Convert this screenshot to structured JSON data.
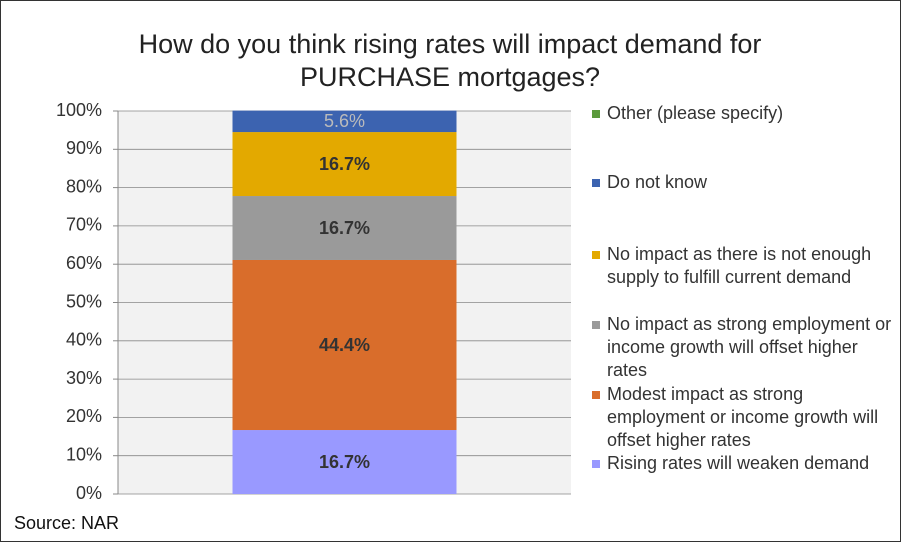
{
  "chart_data": {
    "type": "stacked-bar",
    "title": "How do you think rising rates will impact demand for PURCHASE mortgages?",
    "categories": [
      null
    ],
    "series": [
      {
        "name": "Rising rates will weaken demand",
        "color": "#9999ff",
        "values": [
          16.7
        ],
        "value_labels": [
          "16.7%"
        ]
      },
      {
        "name": "Modest impact as strong employment or income growth will offset higher rates",
        "color": "#d96d2b",
        "values": [
          44.4
        ],
        "value_labels": [
          "44.4%"
        ]
      },
      {
        "name": "No impact as strong employment or income growth will offset higher rates",
        "color": "#9a9a9a",
        "values": [
          16.7
        ],
        "value_labels": [
          "16.7%"
        ]
      },
      {
        "name": "No impact as there is not enough supply to fulfill current demand",
        "color": "#e3a900",
        "values": [
          16.7
        ],
        "value_labels": [
          "16.7%"
        ]
      },
      {
        "name": "Do not know",
        "color": "#3c63b0",
        "values": [
          5.6
        ],
        "value_labels": [
          "5.6%"
        ]
      },
      {
        "name": "Other (please specify)",
        "color": "#5b9a3c",
        "values": [
          0
        ]
      }
    ],
    "ylim": [
      0,
      100
    ],
    "yticks": [
      {
        "value": 0,
        "label": "0%"
      },
      {
        "value": 10,
        "label": "10%"
      },
      {
        "value": 20,
        "label": "20%"
      },
      {
        "value": 30,
        "label": "30%"
      },
      {
        "value": 40,
        "label": "40%"
      },
      {
        "value": 50,
        "label": "50%"
      },
      {
        "value": 60,
        "label": "60%"
      },
      {
        "value": 70,
        "label": "70%"
      },
      {
        "value": 80,
        "label": "80%"
      },
      {
        "value": 90,
        "label": "90%"
      },
      {
        "value": 100,
        "label": "100%"
      }
    ],
    "grid": true,
    "legend": "right",
    "source": "Source: NAR"
  }
}
